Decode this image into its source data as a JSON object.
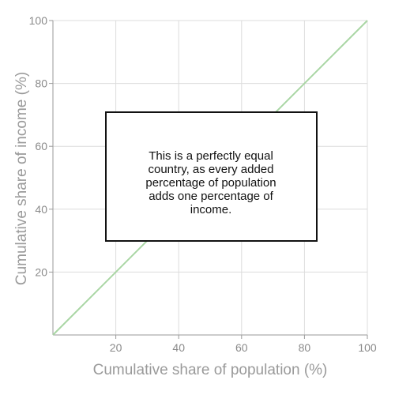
{
  "chart_data": {
    "type": "line",
    "xlabel": "Cumulative share of population (%)",
    "ylabel": "Cumulative share of income (%)",
    "xlim": [
      0,
      100
    ],
    "ylim": [
      0,
      100
    ],
    "x_ticks": [
      20,
      40,
      60,
      80,
      100
    ],
    "y_ticks": [
      20,
      40,
      60,
      80,
      100
    ],
    "grid": true,
    "series": [
      {
        "x": [
          0,
          100
        ],
        "y": [
          0,
          100
        ],
        "color": "#a9d6a4"
      }
    ],
    "annotation": {
      "lines": [
        "This is a perfectly equal",
        "country, as every added",
        "percentage of population",
        "adds one percentage of",
        "income."
      ]
    }
  }
}
